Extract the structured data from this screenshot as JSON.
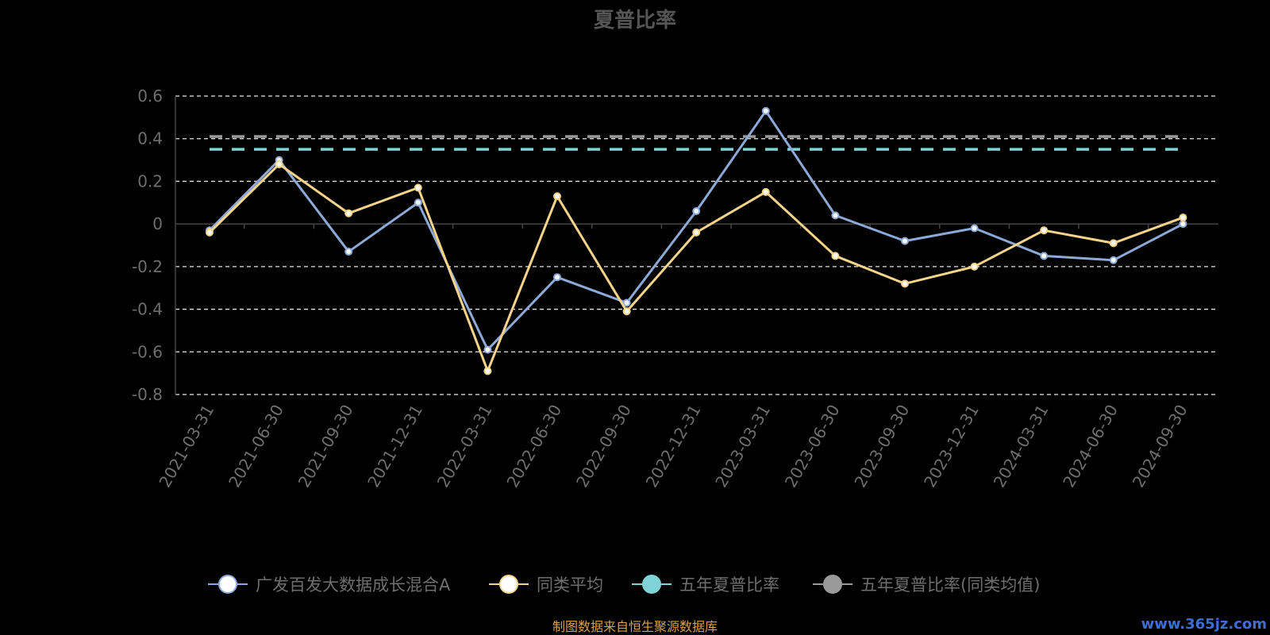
{
  "colors": {
    "series1": "#8ca9d8",
    "series2": "#f5d48a",
    "avg5": "#7fd3d7",
    "avg5peer": "#9a9a9a",
    "grid": "#e6e6e6",
    "axis": "#444444",
    "background": "#000000"
  },
  "footer": {
    "source": "制图数据来自恒生聚源数据库",
    "watermark": "www.365jz.com"
  },
  "chart_data": {
    "type": "line",
    "title": "夏普比率",
    "categories": [
      "2021-03-31",
      "2021-06-30",
      "2021-09-30",
      "2021-12-31",
      "2022-03-31",
      "2022-06-30",
      "2022-09-30",
      "2022-12-31",
      "2023-03-31",
      "2023-06-30",
      "2023-09-30",
      "2023-12-31",
      "2024-03-31",
      "2024-06-30",
      "2024-09-30"
    ],
    "ylim": [
      -0.8,
      0.6
    ],
    "yticks": [
      0.6,
      0.4,
      0.2,
      0,
      -0.2,
      -0.4,
      -0.6,
      -0.8
    ],
    "ytick_labels": [
      "0.6",
      "0.4",
      "0.2",
      "0",
      "-0.2",
      "-0.4",
      "-0.6",
      "-0.8"
    ],
    "grid": "horizontal dashed",
    "legend_position": "bottom",
    "series": [
      {
        "name": "广发百发大数据成长混合A",
        "values": [
          -0.03,
          0.3,
          -0.13,
          0.1,
          -0.59,
          -0.25,
          -0.37,
          0.06,
          0.53,
          0.04,
          -0.08,
          -0.02,
          -0.15,
          -0.17,
          0.0
        ]
      },
      {
        "name": "同类平均",
        "values": [
          -0.04,
          0.28,
          0.05,
          0.17,
          -0.69,
          0.13,
          -0.41,
          -0.04,
          0.15,
          -0.15,
          -0.28,
          -0.2,
          -0.03,
          -0.09,
          0.03
        ]
      },
      {
        "name": "五年夏普比率",
        "values": [
          0.35,
          0.35,
          0.35,
          0.35,
          0.35,
          0.35,
          0.35,
          0.35,
          0.35,
          0.35,
          0.35,
          0.35,
          0.35,
          0.35,
          0.35
        ]
      },
      {
        "name": "五年夏普比率(同类均值)",
        "values": [
          0.41,
          0.41,
          0.41,
          0.41,
          0.41,
          0.41,
          0.41,
          0.41,
          0.41,
          0.41,
          0.41,
          0.41,
          0.41,
          0.41,
          0.41
        ]
      }
    ]
  }
}
